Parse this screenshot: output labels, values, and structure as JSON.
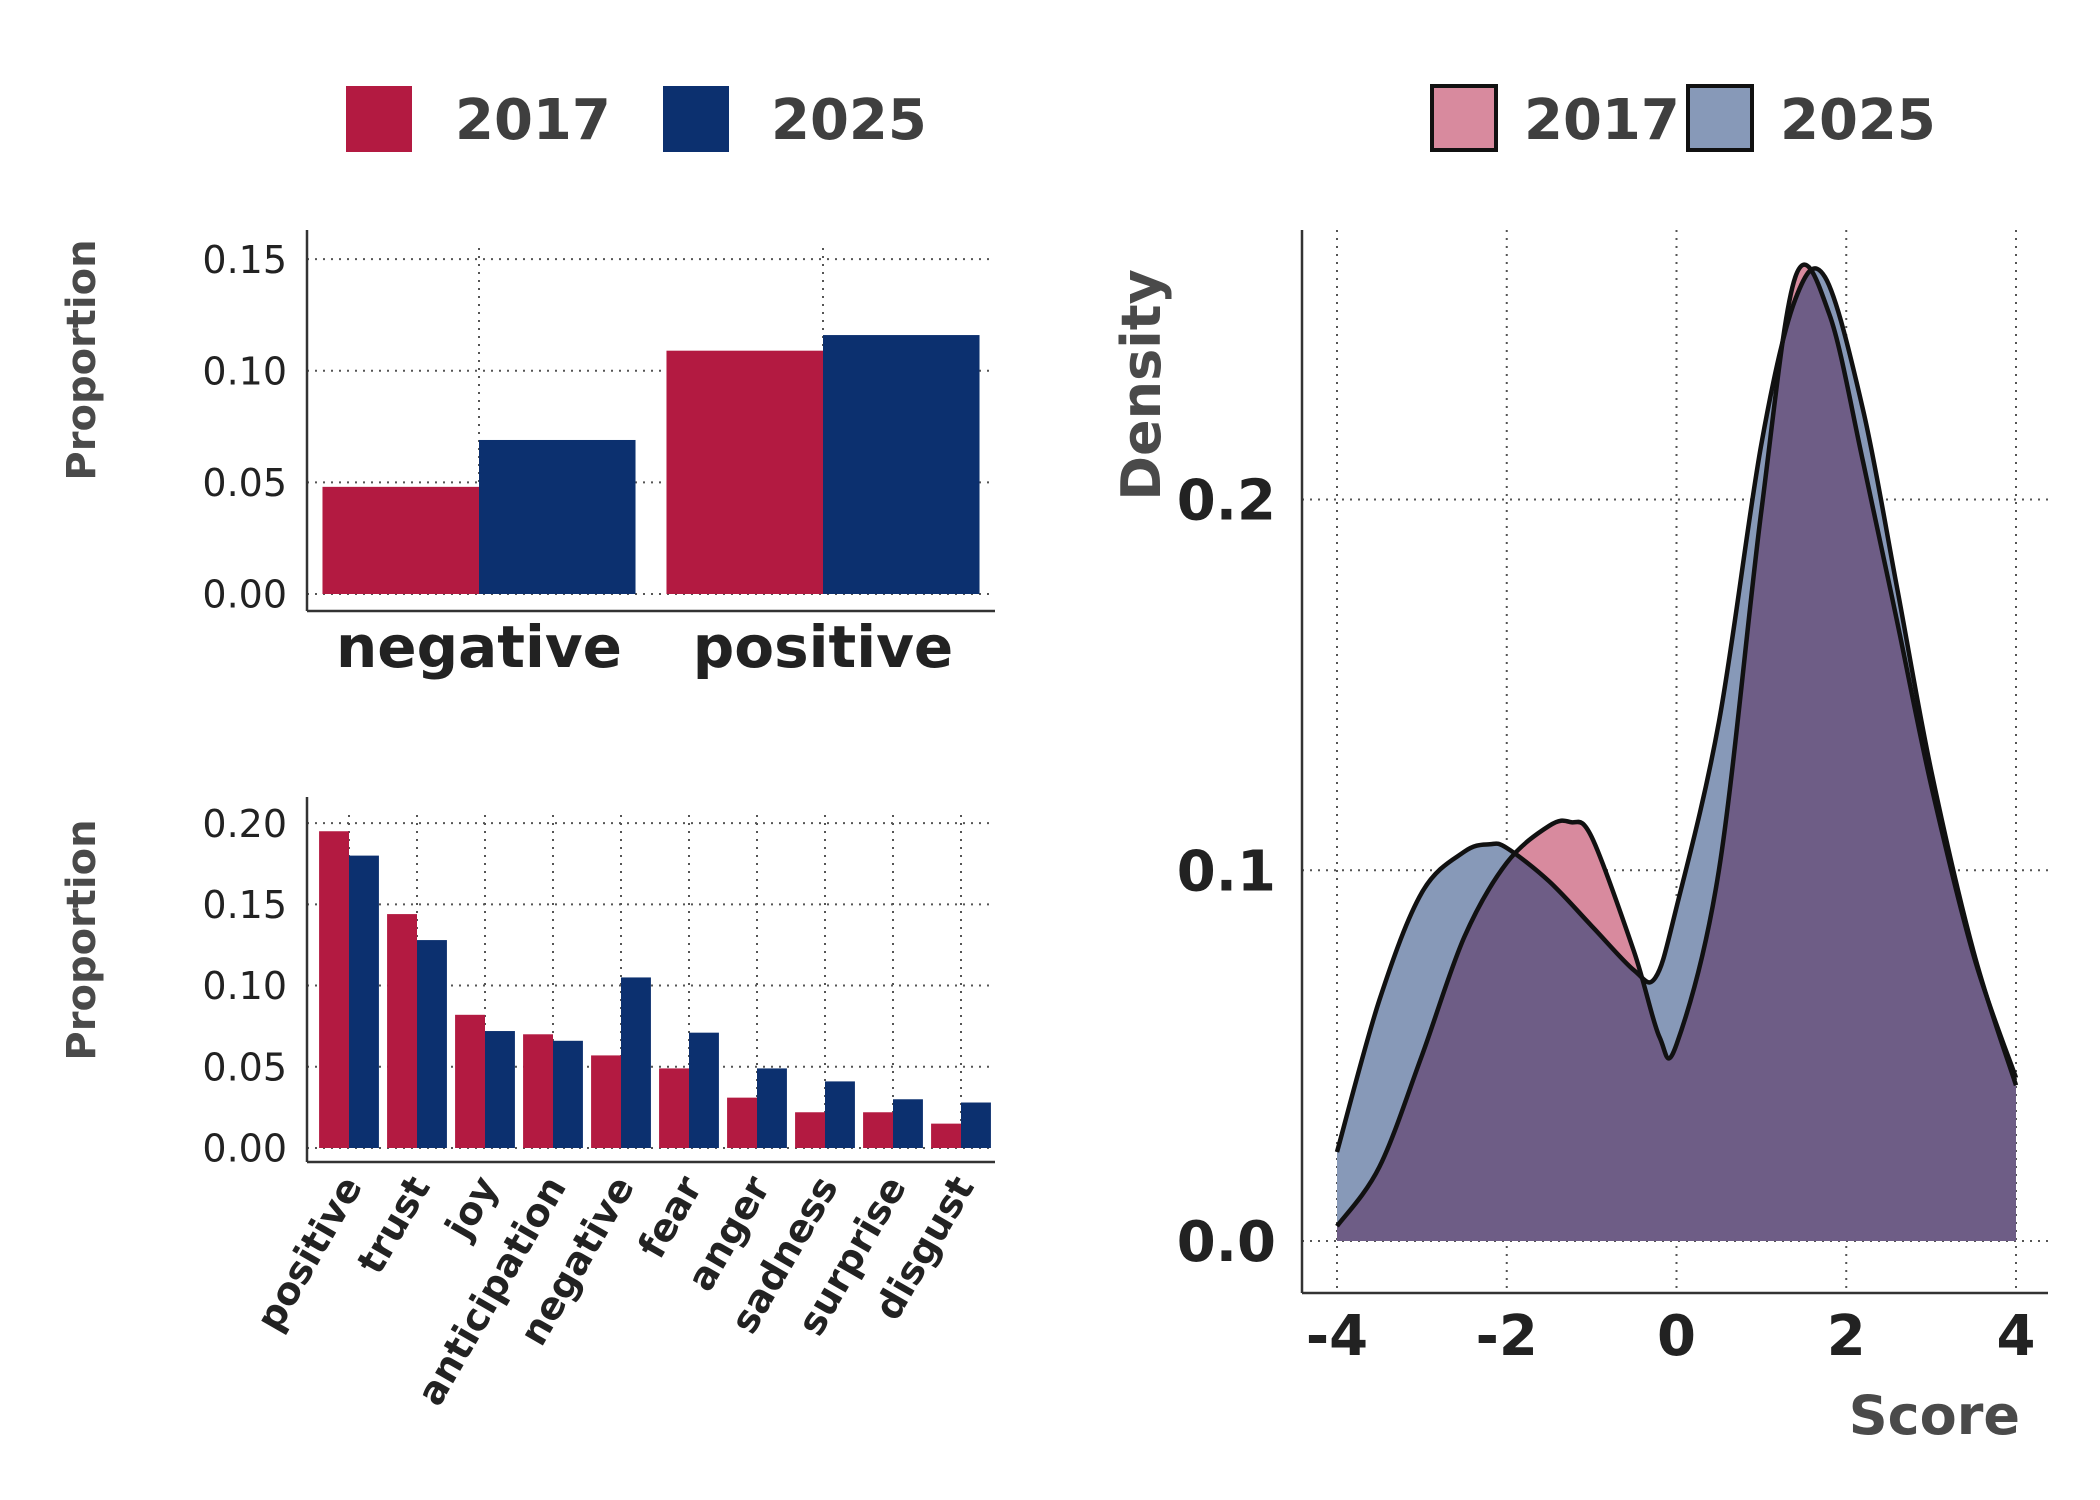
{
  "colors": {
    "bar_2017": "#b31a41",
    "bar_2025": "#0c306f",
    "density_2017": "#d88a9e",
    "density_2025": "#8799b8",
    "density_overlap": "#6e5d86"
  },
  "chart_data": [
    {
      "id": "sentiment-bars",
      "type": "bar",
      "categories": [
        "negative",
        "positive"
      ],
      "series": [
        {
          "name": "2017",
          "values": [
            0.048,
            0.109
          ]
        },
        {
          "name": "2025",
          "values": [
            0.069,
            0.116
          ]
        }
      ],
      "ylabel": "Proportion",
      "ylim": [
        0,
        0.155
      ],
      "yticks": [
        0.0,
        0.05,
        0.1,
        0.15
      ],
      "ytick_labels": [
        "0.00",
        "0.05",
        "0.10",
        "0.15"
      ],
      "grid": true,
      "legend": "top"
    },
    {
      "id": "emotion-bars",
      "type": "bar",
      "categories": [
        "positive",
        "trust",
        "joy",
        "anticipation",
        "negative",
        "fear",
        "anger",
        "sadness",
        "surprise",
        "disgust"
      ],
      "series": [
        {
          "name": "2017",
          "values": [
            0.195,
            0.144,
            0.082,
            0.07,
            0.057,
            0.049,
            0.031,
            0.022,
            0.022,
            0.015
          ]
        },
        {
          "name": "2025",
          "values": [
            0.18,
            0.128,
            0.072,
            0.066,
            0.105,
            0.071,
            0.049,
            0.041,
            0.03,
            0.028
          ]
        }
      ],
      "ylabel": "Proportion",
      "ylim": [
        0,
        0.205
      ],
      "yticks": [
        0.0,
        0.05,
        0.1,
        0.15,
        0.2
      ],
      "ytick_labels": [
        "0.00",
        "0.05",
        "0.10",
        "0.15",
        "0.20"
      ],
      "grid": true
    },
    {
      "id": "score-density",
      "type": "area",
      "xlabel": "Score",
      "ylabel": "Density",
      "xlim": [
        -4,
        4
      ],
      "ylim": [
        0,
        0.27
      ],
      "xticks": [
        -4,
        -2,
        0,
        2,
        4
      ],
      "xtick_labels": [
        "-4",
        "-2",
        "0",
        "2",
        "4"
      ],
      "yticks": [
        0.0,
        0.1,
        0.2
      ],
      "ytick_labels": [
        "0.0",
        "0.1",
        "0.2"
      ],
      "series": [
        {
          "name": "2017",
          "x": [
            -4,
            -3.5,
            -3,
            -2.5,
            -2,
            -1.5,
            -1.25,
            -1,
            -0.5,
            -0.2,
            0,
            0.5,
            1,
            1.4,
            1.8,
            2.2,
            2.6,
            3,
            3.5,
            4
          ],
          "y": [
            0.004,
            0.02,
            0.05,
            0.082,
            0.102,
            0.112,
            0.113,
            0.109,
            0.078,
            0.055,
            0.053,
            0.1,
            0.197,
            0.26,
            0.25,
            0.21,
            0.167,
            0.123,
            0.077,
            0.044
          ]
        },
        {
          "name": "2025",
          "x": [
            -4,
            -3.5,
            -3,
            -2.5,
            -2.2,
            -2,
            -1.5,
            -1,
            -0.5,
            -0.25,
            0,
            0.5,
            1,
            1.4,
            1.75,
            2.2,
            2.6,
            3,
            3.5,
            4
          ],
          "y": [
            0.024,
            0.065,
            0.094,
            0.105,
            0.107,
            0.106,
            0.097,
            0.085,
            0.073,
            0.071,
            0.09,
            0.14,
            0.215,
            0.254,
            0.26,
            0.224,
            0.176,
            0.127,
            0.078,
            0.042
          ]
        }
      ],
      "grid": true,
      "legend": "top"
    }
  ]
}
